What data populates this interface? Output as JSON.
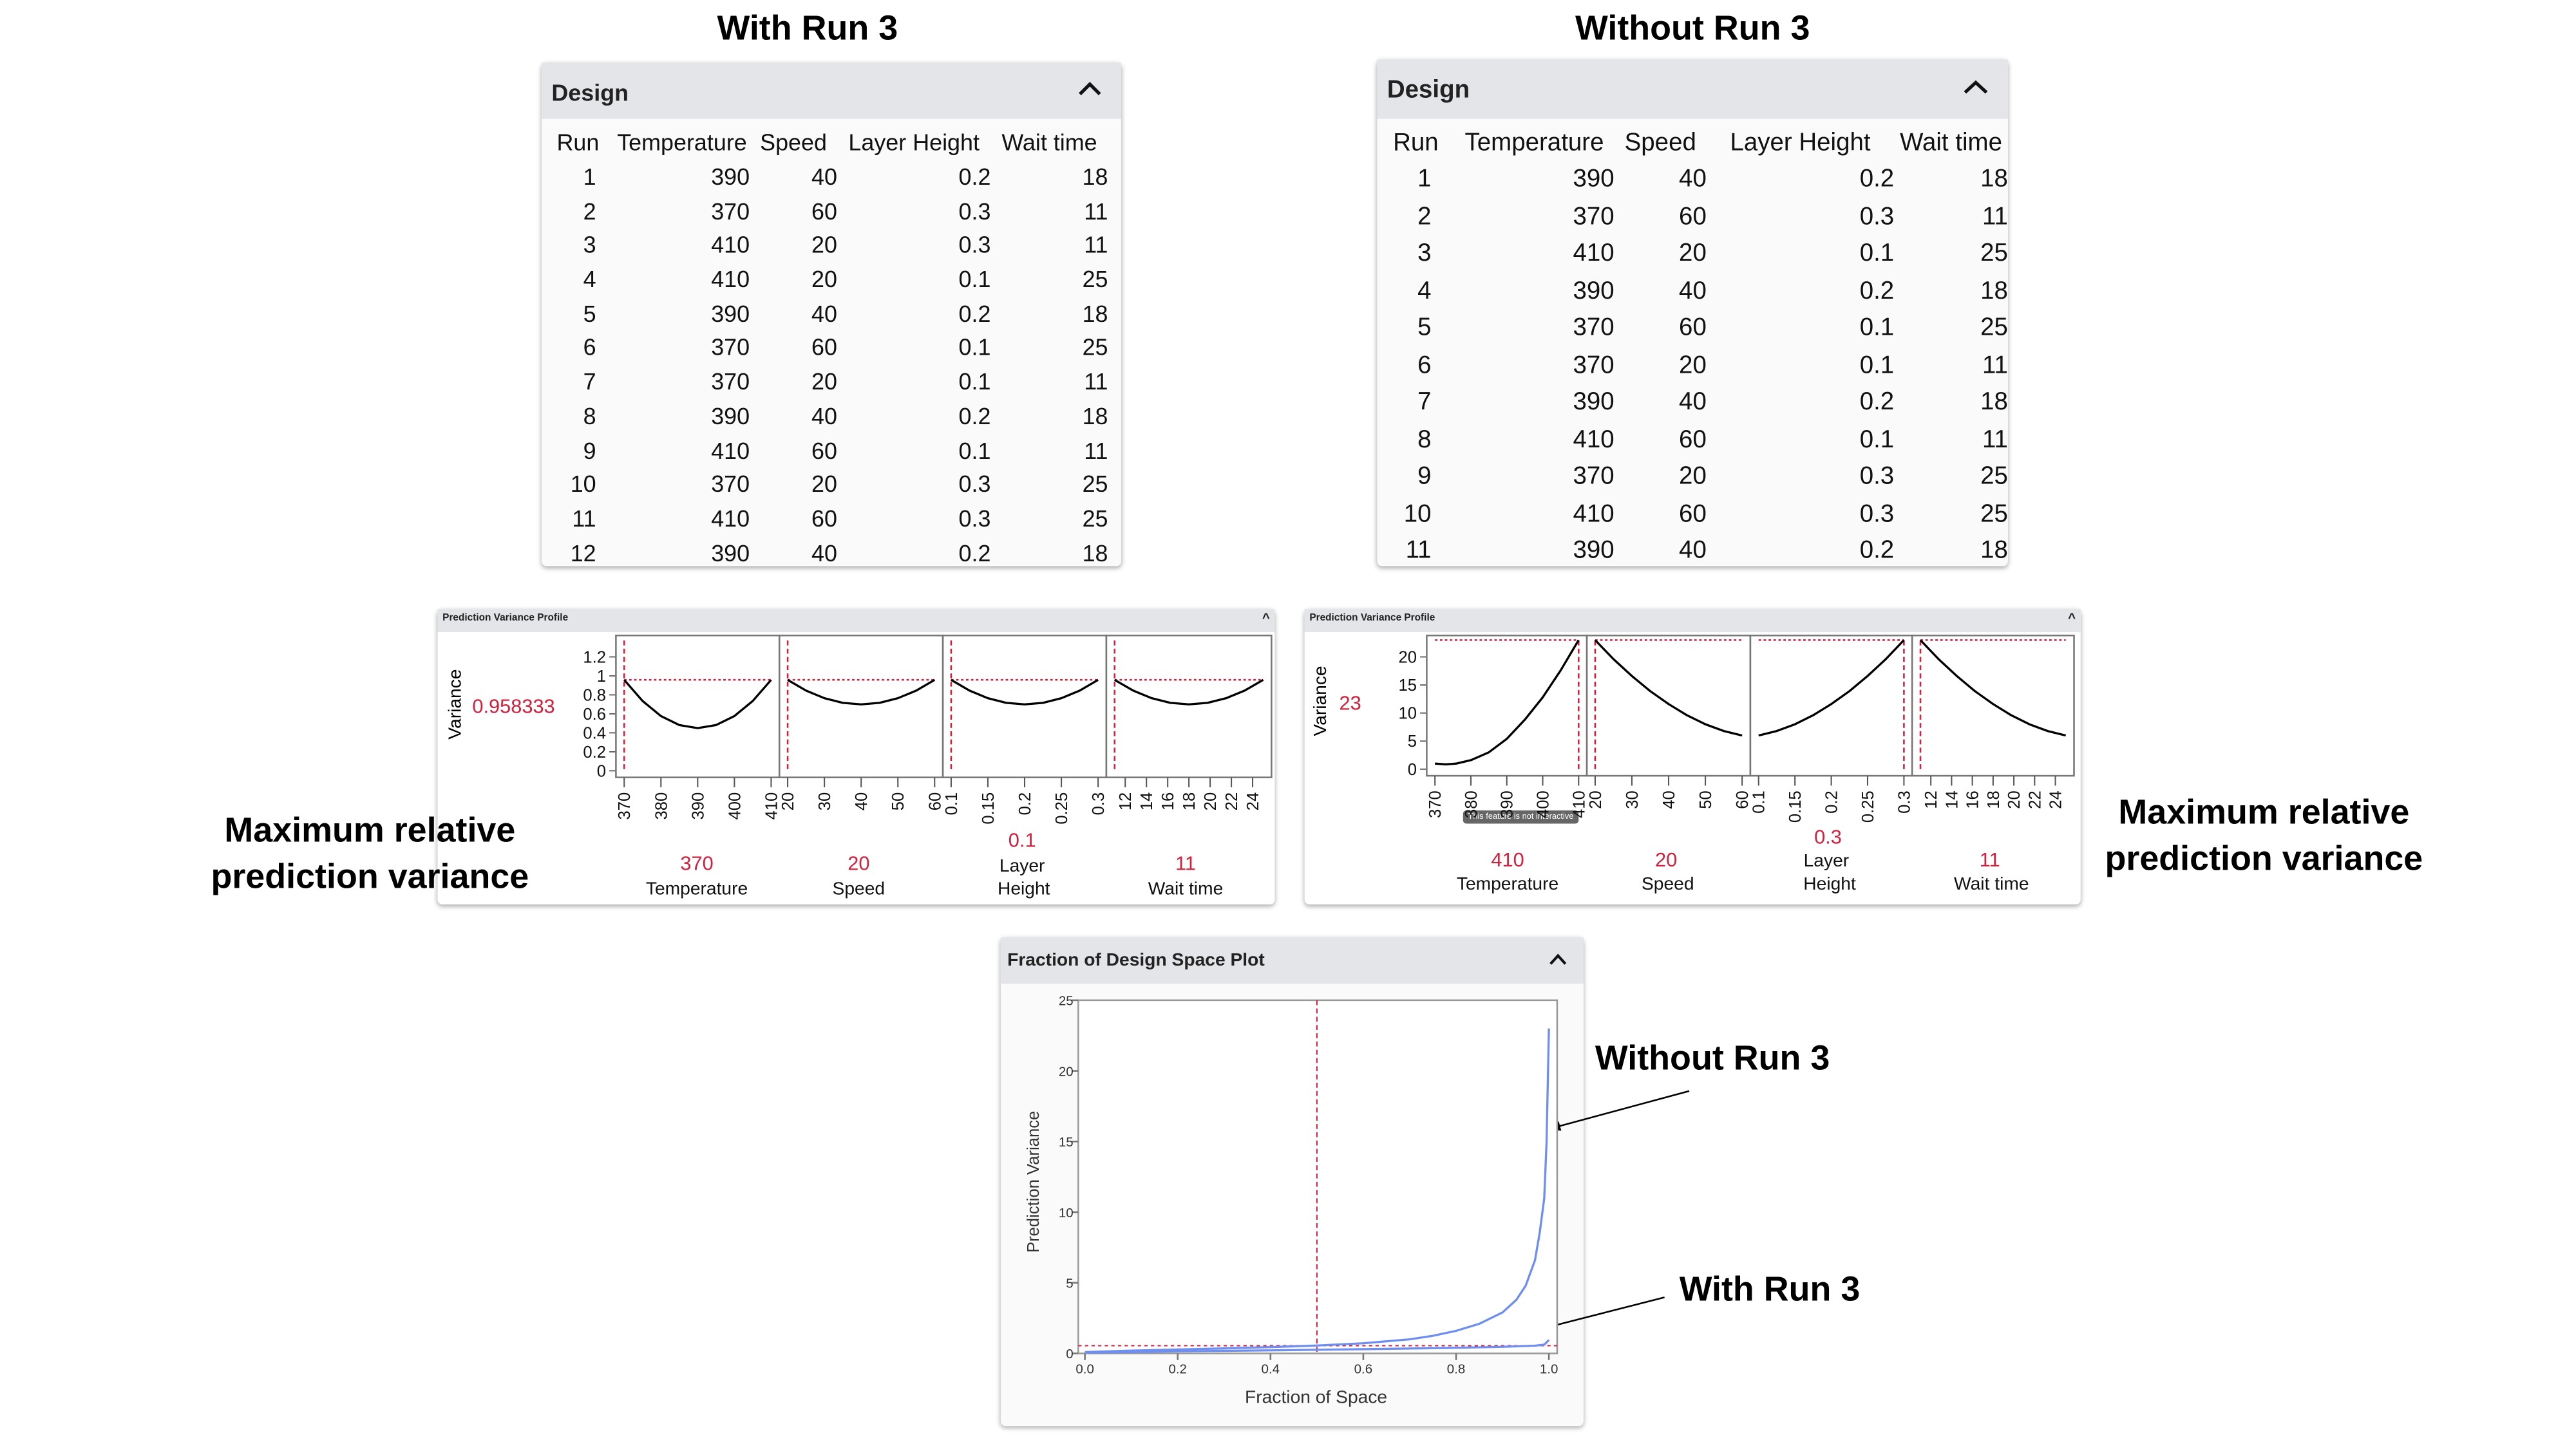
{
  "titles": {
    "with": "With Run 3",
    "without": "Without Run 3"
  },
  "annotations": {
    "max_var_left_1": "Maximum relative",
    "max_var_left_2": "prediction variance",
    "max_var_right_1": "Maximum relative",
    "max_var_right_2": "prediction variance",
    "fds_without": "Without Run 3",
    "fds_with": "With Run 3"
  },
  "design_with": {
    "title": "Design",
    "collapse_icon": "chevron-up-icon",
    "columns": [
      "Run",
      "Temperature",
      "Speed",
      "Layer Height",
      "Wait time"
    ],
    "rows": [
      [
        "1",
        "390",
        "40",
        "0.2",
        "18"
      ],
      [
        "2",
        "370",
        "60",
        "0.3",
        "11"
      ],
      [
        "3",
        "410",
        "20",
        "0.3",
        "11"
      ],
      [
        "4",
        "410",
        "20",
        "0.1",
        "25"
      ],
      [
        "5",
        "390",
        "40",
        "0.2",
        "18"
      ],
      [
        "6",
        "370",
        "60",
        "0.1",
        "25"
      ],
      [
        "7",
        "370",
        "20",
        "0.1",
        "11"
      ],
      [
        "8",
        "390",
        "40",
        "0.2",
        "18"
      ],
      [
        "9",
        "410",
        "60",
        "0.1",
        "11"
      ],
      [
        "10",
        "370",
        "20",
        "0.3",
        "25"
      ],
      [
        "11",
        "410",
        "60",
        "0.3",
        "25"
      ],
      [
        "12",
        "390",
        "40",
        "0.2",
        "18"
      ]
    ]
  },
  "design_without": {
    "title": "Design",
    "collapse_icon": "chevron-up-icon",
    "columns": [
      "Run",
      "Temperature",
      "Speed",
      "Layer Height",
      "Wait time"
    ],
    "rows": [
      [
        "1",
        "390",
        "40",
        "0.2",
        "18"
      ],
      [
        "2",
        "370",
        "60",
        "0.3",
        "11"
      ],
      [
        "3",
        "410",
        "20",
        "0.1",
        "25"
      ],
      [
        "4",
        "390",
        "40",
        "0.2",
        "18"
      ],
      [
        "5",
        "370",
        "60",
        "0.1",
        "25"
      ],
      [
        "6",
        "370",
        "20",
        "0.1",
        "11"
      ],
      [
        "7",
        "390",
        "40",
        "0.2",
        "18"
      ],
      [
        "8",
        "410",
        "60",
        "0.1",
        "11"
      ],
      [
        "9",
        "370",
        "20",
        "0.3",
        "25"
      ],
      [
        "10",
        "410",
        "60",
        "0.3",
        "25"
      ],
      [
        "11",
        "390",
        "40",
        "0.2",
        "18"
      ]
    ]
  },
  "profile_with": {
    "title": "Prediction Variance Profile",
    "ylabel": "Variance",
    "current_variance": "0.958333",
    "factors": [
      {
        "name": "Temperature",
        "value": "370"
      },
      {
        "name": "Speed",
        "value": "20"
      },
      {
        "name_1": "Layer",
        "name_2": "Height",
        "value": "0.1"
      },
      {
        "name": "Wait time",
        "value": "11"
      }
    ]
  },
  "profile_without": {
    "title": "Prediction Variance Profile",
    "ylabel": "Variance",
    "current_variance": "23",
    "tooltip": "This feature is not interactive",
    "factors": [
      {
        "name": "Temperature",
        "value": "410"
      },
      {
        "name": "Speed",
        "value": "20"
      },
      {
        "name_1": "Layer",
        "name_2": "Height",
        "value": "0.3"
      },
      {
        "name": "Wait time",
        "value": "11"
      }
    ]
  },
  "fds_panel": {
    "title": "Fraction of Design Space Plot",
    "xlabel": "Fraction of Space",
    "ylabel": "Prediction Variance"
  },
  "colors": {
    "accent_red": "#d0213d",
    "curve_blue": "#6f8ff0",
    "header_grey": "#e3e5e8"
  },
  "chart_data": [
    {
      "type": "line",
      "id": "profile_with",
      "ylim": [
        0,
        1.3
      ],
      "yticks": [
        "0",
        "0.2",
        "0.4",
        "0.6",
        "0.8",
        "1",
        "1.2"
      ],
      "current_y": 0.958333,
      "panels": [
        {
          "factor": "Temperature",
          "xlim": [
            370,
            410
          ],
          "ticks": [
            "370",
            "380",
            "390",
            "400",
            "410"
          ],
          "current_x": 370,
          "points": [
            [
              370,
              0.958
            ],
            [
              375,
              0.736
            ],
            [
              380,
              0.577
            ],
            [
              385,
              0.482
            ],
            [
              390,
              0.45
            ],
            [
              395,
              0.482
            ],
            [
              400,
              0.577
            ],
            [
              405,
              0.736
            ],
            [
              410,
              0.958
            ]
          ]
        },
        {
          "factor": "Speed",
          "xlim": [
            20,
            60
          ],
          "ticks": [
            "20",
            "30",
            "40",
            "50",
            "60"
          ],
          "current_x": 20,
          "points": [
            [
              20,
              0.958
            ],
            [
              25,
              0.845
            ],
            [
              30,
              0.765
            ],
            [
              35,
              0.716
            ],
            [
              40,
              0.7
            ],
            [
              45,
              0.716
            ],
            [
              50,
              0.765
            ],
            [
              55,
              0.845
            ],
            [
              60,
              0.958
            ]
          ]
        },
        {
          "factor": "Layer Height",
          "xlim": [
            0.1,
            0.3
          ],
          "ticks": [
            "0.1",
            "0.15",
            "0.2",
            "0.25",
            "0.3"
          ],
          "current_x": 0.1,
          "points": [
            [
              0.1,
              0.958
            ],
            [
              0.125,
              0.845
            ],
            [
              0.15,
              0.765
            ],
            [
              0.175,
              0.716
            ],
            [
              0.2,
              0.7
            ],
            [
              0.225,
              0.716
            ],
            [
              0.25,
              0.765
            ],
            [
              0.275,
              0.845
            ],
            [
              0.3,
              0.958
            ]
          ]
        },
        {
          "factor": "Wait time",
          "xlim": [
            11,
            25
          ],
          "ticks": [
            "12",
            "14",
            "16",
            "18",
            "20",
            "22",
            "24"
          ],
          "current_x": 11,
          "points": [
            [
              11,
              0.958
            ],
            [
              12.75,
              0.845
            ],
            [
              14.5,
              0.765
            ],
            [
              16.25,
              0.716
            ],
            [
              18,
              0.7
            ],
            [
              19.75,
              0.716
            ],
            [
              21.5,
              0.765
            ],
            [
              23.25,
              0.845
            ],
            [
              25,
              0.958
            ]
          ]
        }
      ]
    },
    {
      "type": "line",
      "id": "profile_without",
      "ylim": [
        0,
        24.5
      ],
      "yticks": [
        "0",
        "5",
        "10",
        "15",
        "20"
      ],
      "current_y": 23,
      "panels": [
        {
          "factor": "Temperature",
          "xlim": [
            370,
            410
          ],
          "ticks": [
            "370",
            "380",
            "390",
            "400",
            "410"
          ],
          "current_x": 410,
          "points": [
            [
              370,
              1.0
            ],
            [
              373,
              0.85
            ],
            [
              376,
              1.0
            ],
            [
              380,
              1.6
            ],
            [
              385,
              3.0
            ],
            [
              390,
              5.4
            ],
            [
              395,
              8.8
            ],
            [
              400,
              12.8
            ],
            [
              405,
              17.6
            ],
            [
              410,
              23
            ]
          ]
        },
        {
          "factor": "Speed",
          "xlim": [
            20,
            60
          ],
          "ticks": [
            "20",
            "30",
            "40",
            "50",
            "60"
          ],
          "current_x": 20,
          "points": [
            [
              20,
              23
            ],
            [
              25,
              19.6
            ],
            [
              30,
              16.6
            ],
            [
              35,
              13.9
            ],
            [
              40,
              11.6
            ],
            [
              45,
              9.6
            ],
            [
              50,
              8.0
            ],
            [
              55,
              6.8
            ],
            [
              60,
              6.0
            ]
          ]
        },
        {
          "factor": "Layer Height",
          "xlim": [
            0.1,
            0.3
          ],
          "ticks": [
            "0.1",
            "0.15",
            "0.2",
            "0.25",
            "0.3"
          ],
          "current_x": 0.3,
          "points": [
            [
              0.1,
              6.0
            ],
            [
              0.125,
              6.8
            ],
            [
              0.15,
              8.0
            ],
            [
              0.175,
              9.6
            ],
            [
              0.2,
              11.6
            ],
            [
              0.225,
              13.9
            ],
            [
              0.25,
              16.6
            ],
            [
              0.275,
              19.6
            ],
            [
              0.3,
              23
            ]
          ]
        },
        {
          "factor": "Wait time",
          "xlim": [
            11,
            25
          ],
          "ticks": [
            "12",
            "14",
            "16",
            "18",
            "20",
            "22",
            "24"
          ],
          "current_x": 11,
          "points": [
            [
              11,
              23
            ],
            [
              12.75,
              19.6
            ],
            [
              14.5,
              16.6
            ],
            [
              16.25,
              13.9
            ],
            [
              18,
              11.6
            ],
            [
              19.75,
              9.6
            ],
            [
              21.5,
              8.0
            ],
            [
              23.25,
              6.8
            ],
            [
              25,
              6.0
            ]
          ]
        }
      ]
    },
    {
      "type": "line",
      "id": "fds",
      "title": "Fraction of Design Space Plot",
      "xlabel": "Fraction of Space",
      "ylabel": "Prediction Variance",
      "xlim": [
        0,
        1
      ],
      "ylim": [
        0,
        25
      ],
      "xticks": [
        "0.0",
        "0.2",
        "0.4",
        "0.6",
        "0.8",
        "1.0"
      ],
      "yticks": [
        "0",
        "5",
        "10",
        "15",
        "20",
        "25"
      ],
      "reference_x": 0.5,
      "reference_y": 0.55,
      "series": [
        {
          "name": "Without Run 3",
          "points": [
            [
              0,
              0.1
            ],
            [
              0.1,
              0.2
            ],
            [
              0.2,
              0.28
            ],
            [
              0.3,
              0.36
            ],
            [
              0.4,
              0.45
            ],
            [
              0.5,
              0.56
            ],
            [
              0.6,
              0.72
            ],
            [
              0.7,
              1.0
            ],
            [
              0.75,
              1.25
            ],
            [
              0.8,
              1.6
            ],
            [
              0.85,
              2.1
            ],
            [
              0.9,
              2.9
            ],
            [
              0.93,
              3.8
            ],
            [
              0.95,
              4.8
            ],
            [
              0.97,
              6.6
            ],
            [
              0.98,
              8.5
            ],
            [
              0.99,
              11
            ],
            [
              0.995,
              15
            ],
            [
              1.0,
              23
            ]
          ]
        },
        {
          "name": "With Run 3",
          "points": [
            [
              0,
              0.05
            ],
            [
              0.2,
              0.15
            ],
            [
              0.4,
              0.22
            ],
            [
              0.6,
              0.3
            ],
            [
              0.8,
              0.4
            ],
            [
              0.9,
              0.47
            ],
            [
              0.97,
              0.55
            ],
            [
              0.99,
              0.62
            ],
            [
              1.0,
              0.95
            ]
          ]
        }
      ]
    }
  ]
}
